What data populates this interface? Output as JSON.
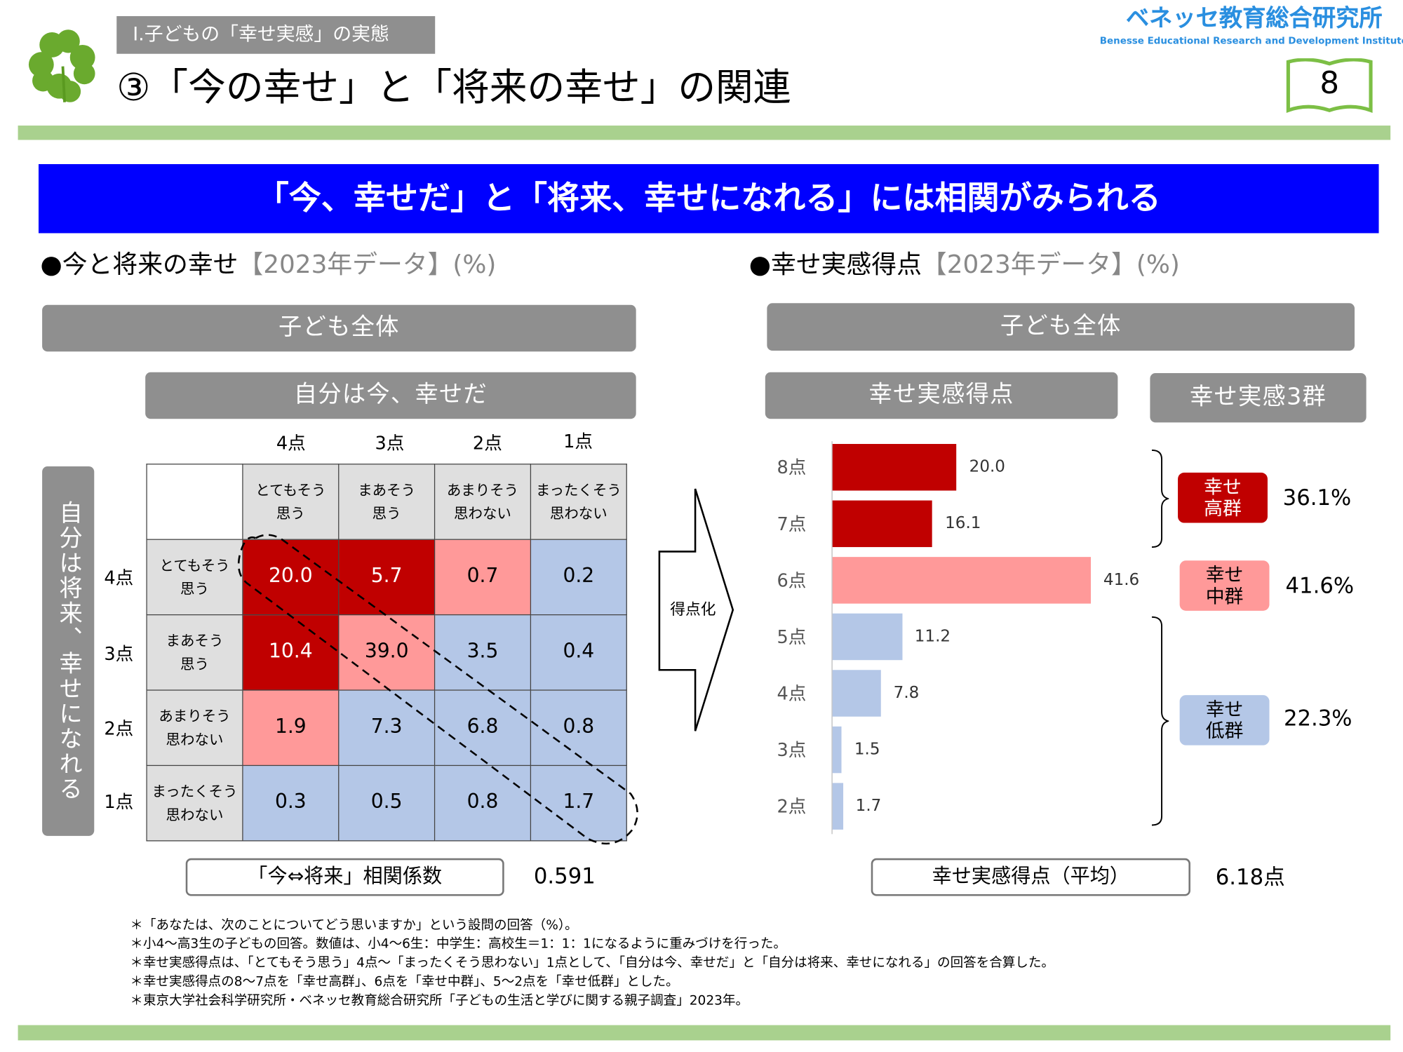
{
  "header": {
    "section_label": "Ⅰ.子どもの「幸せ実感」の実態",
    "title": "③「今の幸せ」と「将来の幸せ」の関連",
    "logo_jp": "ベネッセ教育総合研究所",
    "logo_en": "Benesse  Educational Research and Development Institute",
    "page_number": "8"
  },
  "banner": "「今、幸せだ」と「将来、幸せになれる」には相関がみられる",
  "left": {
    "heading": "●今と将来の幸せ",
    "heading_sub": "【2023年データ】(%)",
    "group_label": "子ども全体",
    "col_axis_label": "自分は今、幸せだ",
    "row_axis_label": "自分は将来、幸せになれる",
    "col_scores": [
      "4点",
      "3点",
      "2点",
      "1点"
    ],
    "col_headers": [
      [
        "とてもそう",
        "思う"
      ],
      [
        "まあそう",
        "思う"
      ],
      [
        "あまりそう",
        "思わない"
      ],
      [
        "まったくそう",
        "思わない"
      ]
    ],
    "row_scores": [
      "4点",
      "3点",
      "2点",
      "1点"
    ],
    "row_headers": [
      [
        "とてもそう",
        "思う"
      ],
      [
        "まあそう",
        "思う"
      ],
      [
        "あまりそう",
        "思わない"
      ],
      [
        "まったくそう",
        "思わない"
      ]
    ],
    "cells": [
      [
        {
          "v": "20.0",
          "c": "red"
        },
        {
          "v": "5.7",
          "c": "red"
        },
        {
          "v": "0.7",
          "c": "pink"
        },
        {
          "v": "0.2",
          "c": "blue"
        }
      ],
      [
        {
          "v": "10.4",
          "c": "red"
        },
        {
          "v": "39.0",
          "c": "pink"
        },
        {
          "v": "3.5",
          "c": "blue"
        },
        {
          "v": "0.4",
          "c": "blue"
        }
      ],
      [
        {
          "v": "1.9",
          "c": "pink"
        },
        {
          "v": "7.3",
          "c": "blue"
        },
        {
          "v": "6.8",
          "c": "blue"
        },
        {
          "v": "0.8",
          "c": "blue"
        }
      ],
      [
        {
          "v": "0.3",
          "c": "blue"
        },
        {
          "v": "0.5",
          "c": "blue"
        },
        {
          "v": "0.8",
          "c": "blue"
        },
        {
          "v": "1.7",
          "c": "blue"
        }
      ]
    ],
    "correlation_label": "「今⇔将来」相関係数",
    "correlation_value": "0.591"
  },
  "arrow_label": "得点化",
  "right": {
    "heading": "●幸せ実感得点",
    "heading_sub": "【2023年データ】(%)",
    "group_label": "子ども全体",
    "score_header": "幸せ実感得点",
    "groups_header": "幸せ実感3群",
    "groups": [
      {
        "label_1": "幸せ",
        "label_2": "高群",
        "pct": "36.1%",
        "color": "red"
      },
      {
        "label_1": "幸せ",
        "label_2": "中群",
        "pct": "41.6%",
        "color": "pink"
      },
      {
        "label_1": "幸せ",
        "label_2": "低群",
        "pct": "22.3%",
        "color": "blue"
      }
    ],
    "average_label": "幸せ実感得点（平均）",
    "average_value": "6.18点"
  },
  "colors": {
    "red": "#c00000",
    "pink": "#ff9999",
    "blue": "#b4c7e7",
    "banner": "#0000ff",
    "green": "#a9d18e"
  },
  "chart_data": {
    "type": "bar",
    "orientation": "horizontal",
    "title": "幸せ実感得点",
    "categories": [
      "8点",
      "7点",
      "6点",
      "5点",
      "4点",
      "3点",
      "2点"
    ],
    "values": [
      20.0,
      16.1,
      41.6,
      11.2,
      7.8,
      1.5,
      1.7
    ],
    "labels": [
      "20.0",
      "16.1",
      "41.6",
      "11.2",
      "7.8",
      "1.5",
      "1.7"
    ],
    "bar_colors": [
      "red",
      "red",
      "pink",
      "blue",
      "blue",
      "blue",
      "blue"
    ],
    "xlim": [
      0,
      45
    ],
    "unit": "%"
  },
  "footnotes": [
    "＊「あなたは、次のことについてどう思いますか」という設問の回答（%）。",
    "＊小4～高3生の子どもの回答。数値は、小4～6生：中学生：高校生＝1：1：1になるように重みづけを行った。",
    "＊幸せ実感得点は、「とてもそう思う」4点～「まったくそう思わない」1点として、「自分は今、幸せだ」と「自分は将来、幸せになれる」の回答を合算した。",
    "＊幸せ実感得点の8～7点を「幸せ高群」、6点を「幸せ中群」、5～2点を「幸せ低群」とした。",
    "＊東京大学社会科学研究所・ベネッセ教育総合研究所「子どもの生活と学びに関する親子調査」2023年。"
  ]
}
